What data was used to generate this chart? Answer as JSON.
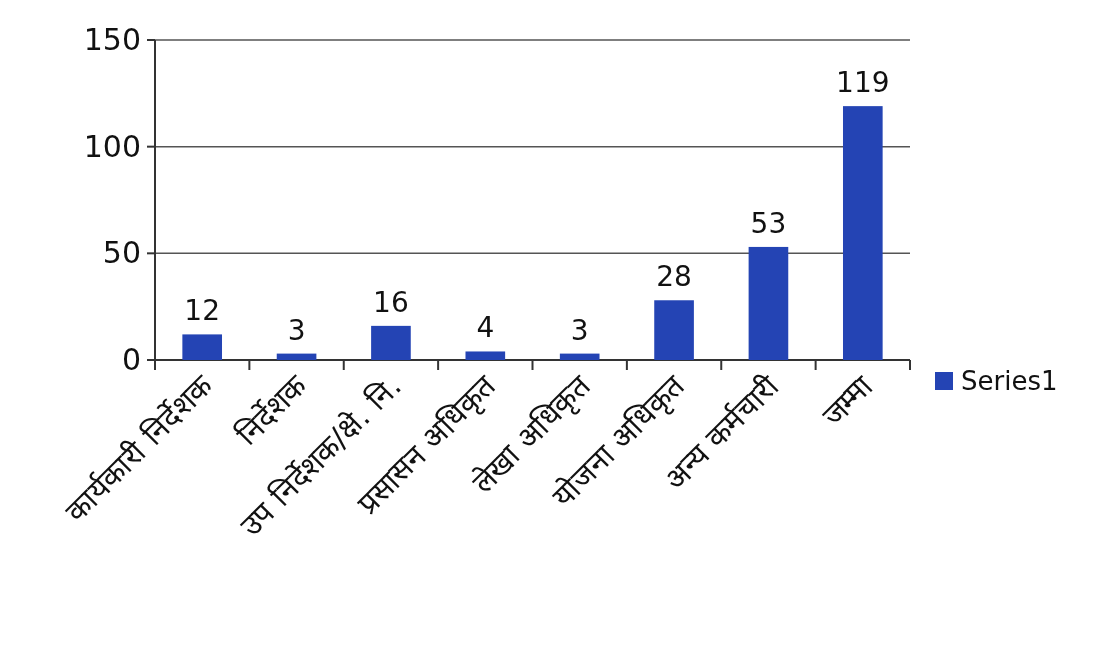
{
  "chart_data": {
    "type": "bar",
    "categories": [
      "कार्यकारी निर्देशक",
      "निर्देशक",
      "उप निर्देशक/क्षे. नि.",
      "प्रसासन अधिकृत",
      "लेखा अधिकृत",
      "योजना अधिकृत",
      "अन्य कर्मचारी",
      "जम्मा"
    ],
    "series": [
      {
        "name": "Series1",
        "color": "#2444b4",
        "values": [
          12,
          3,
          16,
          4,
          3,
          28,
          53,
          119
        ]
      }
    ],
    "ylim": [
      0,
      150
    ],
    "yticks": [
      0,
      50,
      100,
      150
    ],
    "grid": "y",
    "legend": "right",
    "data_labels": true
  }
}
